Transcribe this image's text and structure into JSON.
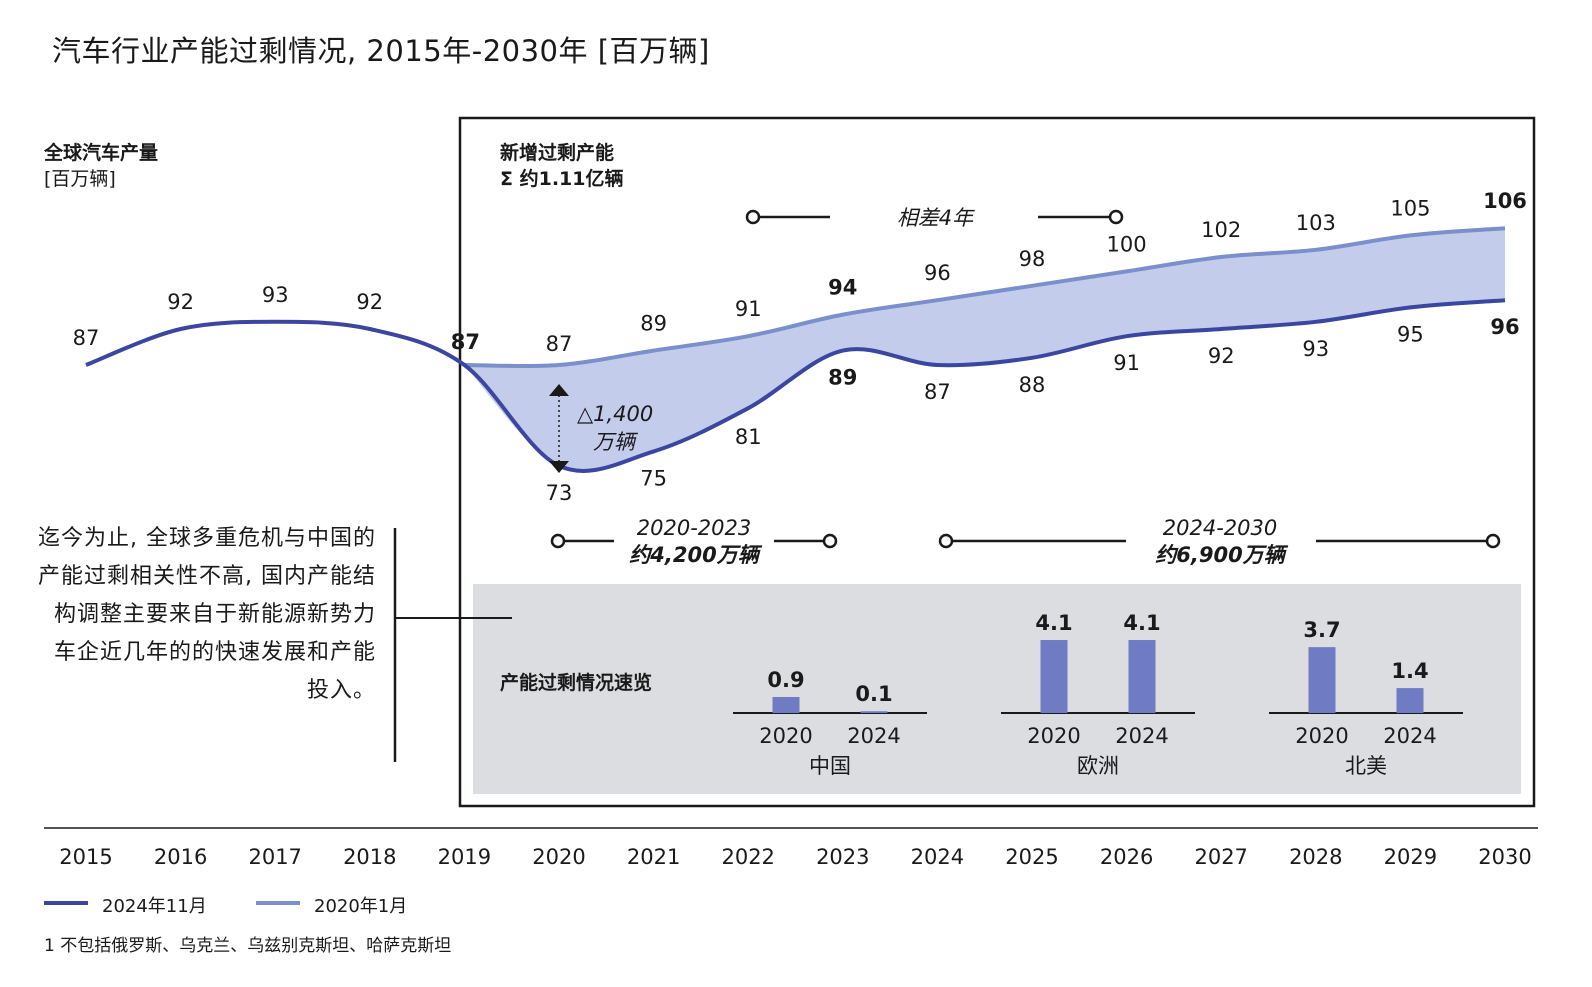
{
  "title": "汽车行业产能过剩情况, 2015年-2030年 [百万辆]",
  "left_header": {
    "line1": "全球汽车产量",
    "line2": "[百万辆]"
  },
  "right_header": {
    "line1": "新增过剩产能",
    "line2": "Σ 约1.11亿辆"
  },
  "gap_label": "相差4年",
  "delta_label": {
    "line1": "△1,400",
    "line2": "万辆"
  },
  "period_1": {
    "years": "2020-2023",
    "amount": "约4,200万辆"
  },
  "period_2": {
    "years": "2024-2030",
    "amount": "约6,900万辆"
  },
  "note": "迄今为止, 全球多重危机与中国的产能过剩相关性不高, 国内产能结构调整主要来自于新能源新势力车企近几年的的快速发展和产能投入。",
  "footnote": "1 不包括俄罗斯、乌克兰、乌兹别克斯坦、哈萨克斯坦",
  "colors": {
    "dark_series": "#3b46a0",
    "light_series": "#7b8fcc",
    "fill": "#c3cdeb",
    "bar": "#6f7cc4",
    "panel_bg": "#dcdde0"
  },
  "chart_data": [
    {
      "type": "line",
      "x": [
        2015,
        2016,
        2017,
        2018,
        2019,
        2020,
        2021,
        2022,
        2023,
        2024,
        2025,
        2026,
        2027,
        2028,
        2029,
        2030
      ],
      "series": [
        {
          "name": "2024年11月",
          "values": [
            87,
            92,
            93,
            92,
            87,
            73,
            75,
            81,
            89,
            87,
            88,
            91,
            92,
            93,
            95,
            96
          ]
        },
        {
          "name": "2020年1月",
          "values": [
            null,
            null,
            null,
            null,
            87,
            87,
            89,
            91,
            94,
            96,
            98,
            100,
            102,
            103,
            105,
            106
          ]
        }
      ],
      "bold_labels": [
        "2019",
        "2023",
        "2030"
      ],
      "xlabel": "",
      "ylabel": "",
      "legend": "bottom-left",
      "grid": false
    },
    {
      "type": "bar",
      "title": "产能过剩情况速览",
      "groups": [
        {
          "region": "中国",
          "categories": [
            "2020",
            "2024"
          ],
          "values": [
            0.9,
            0.1
          ]
        },
        {
          "region": "欧洲",
          "categories": [
            "2020",
            "2024"
          ],
          "values": [
            4.1,
            4.1
          ]
        },
        {
          "region": "北美",
          "categories": [
            "2020",
            "2024"
          ],
          "values": [
            3.7,
            1.4
          ]
        }
      ]
    }
  ]
}
